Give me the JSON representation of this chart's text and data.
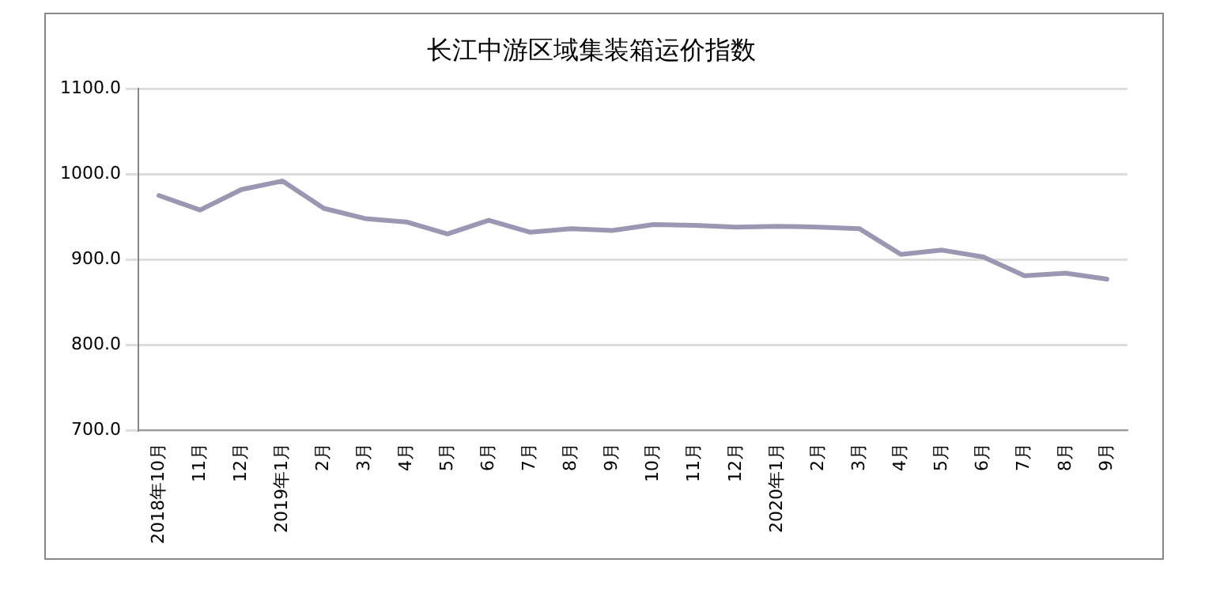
{
  "chart_data": {
    "type": "line",
    "title": "长江中游区域集装箱运价指数",
    "categories": [
      "2018年10月",
      "11月",
      "12月",
      "2019年1月",
      "2月",
      "3月",
      "4月",
      "5月",
      "6月",
      "7月",
      "8月",
      "9月",
      "10月",
      "11月",
      "12月",
      "2020年1月",
      "2月",
      "3月",
      "4月",
      "5月",
      "6月",
      "7月",
      "8月",
      "9月"
    ],
    "series": [
      {
        "color": "#9b97b3",
        "values": [
          975,
          958,
          982,
          992,
          960,
          948,
          944,
          930,
          946,
          932,
          936,
          934,
          941,
          940,
          938,
          939,
          938,
          936,
          906,
          911,
          903,
          881,
          884,
          877
        ]
      }
    ],
    "ylim": [
      700,
      1100
    ],
    "yticks": [
      {
        "value": 700,
        "label": "700.0"
      },
      {
        "value": 800,
        "label": "800.0"
      },
      {
        "value": 900,
        "label": "900.0"
      },
      {
        "value": 1000,
        "label": "1000.0"
      },
      {
        "value": 1100,
        "label": "1100.0"
      }
    ],
    "grid": "y",
    "legend": false,
    "marker": "none",
    "line_style": "solid"
  }
}
